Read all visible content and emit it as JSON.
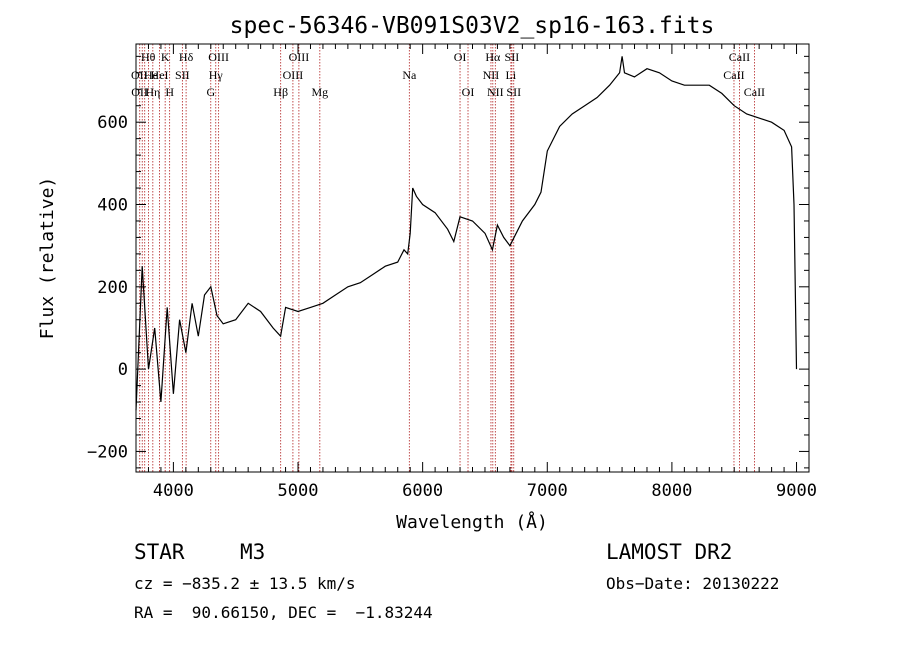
{
  "chart_data": {
    "type": "line",
    "title": "spec-56346-VB091S03V2_sp16-163.fits",
    "xlabel": "Wavelength (Å)",
    "ylabel": "Flux (relative)",
    "xlim": [
      3700,
      9100
    ],
    "ylim": [
      -250,
      790
    ],
    "x_ticks": [
      4000,
      5000,
      6000,
      7000,
      8000,
      9000
    ],
    "x_tick_labels": [
      "4000",
      "5000",
      "6000",
      "7000",
      "8000",
      "9000"
    ],
    "y_ticks": [
      -200,
      0,
      200,
      400,
      600
    ],
    "y_tick_labels": [
      "−200",
      "0",
      "200",
      "400",
      "600"
    ],
    "grid": false,
    "series": [
      {
        "values_x": [
          3700,
          3750,
          3800,
          3850,
          3900,
          3950,
          4000,
          4050,
          4100,
          4150,
          4200,
          4250,
          4300,
          4350,
          4400,
          4500,
          4600,
          4700,
          4800,
          4860,
          4900,
          5000,
          5100,
          5200,
          5300,
          5400,
          5500,
          5600,
          5700,
          5800,
          5850,
          5880,
          5900,
          5920,
          5950,
          6000,
          6100,
          6200,
          6250,
          6300,
          6400,
          6500,
          6560,
          6600,
          6650,
          6700,
          6800,
          6900,
          6950,
          7000,
          7100,
          7200,
          7300,
          7400,
          7500,
          7580,
          7600,
          7620,
          7700,
          7800,
          7900,
          8000,
          8100,
          8200,
          8300,
          8400,
          8500,
          8600,
          8700,
          8800,
          8900,
          8960,
          8980,
          9000
        ],
        "values_y": [
          -100,
          250,
          0,
          100,
          -80,
          150,
          -60,
          120,
          40,
          160,
          80,
          180,
          200,
          130,
          110,
          120,
          160,
          140,
          100,
          80,
          150,
          140,
          150,
          160,
          180,
          200,
          210,
          230,
          250,
          260,
          290,
          280,
          330,
          440,
          420,
          400,
          380,
          340,
          310,
          370,
          360,
          330,
          290,
          350,
          320,
          300,
          360,
          400,
          430,
          530,
          590,
          620,
          640,
          660,
          690,
          720,
          760,
          720,
          710,
          730,
          720,
          700,
          690,
          690,
          690,
          670,
          640,
          620,
          610,
          600,
          580,
          540,
          400,
          0
        ]
      }
    ],
    "annotations": {
      "line_x": [
        3730,
        3750,
        3770,
        3800,
        3835,
        3889,
        3934,
        3970,
        4072,
        4102,
        4300,
        4340,
        4363,
        4861,
        4959,
        5007,
        5175,
        5893,
        6300,
        6364,
        6548,
        6563,
        6583,
        6708,
        6716,
        6731,
        8498,
        8542,
        8662
      ],
      "labels": [
        {
          "text": "OII",
          "x": 3727,
          "row": 2
        },
        {
          "text": "OII",
          "x": 3729,
          "row": 3
        },
        {
          "text": "Hθ",
          "x": 3798,
          "row": 1
        },
        {
          "text": "He",
          "x": 3820,
          "row": 2
        },
        {
          "text": "Hη",
          "x": 3835,
          "row": 3
        },
        {
          "text": "K",
          "x": 3934,
          "row": 1
        },
        {
          "text": "HeI",
          "x": 3889,
          "row": 2
        },
        {
          "text": "H",
          "x": 3970,
          "row": 3
        },
        {
          "text": "SII",
          "x": 4072,
          "row": 2
        },
        {
          "text": "Hδ",
          "x": 4102,
          "row": 1
        },
        {
          "text": "OIII",
          "x": 4363,
          "row": 1
        },
        {
          "text": "Hγ",
          "x": 4340,
          "row": 2
        },
        {
          "text": "G",
          "x": 4300,
          "row": 3
        },
        {
          "text": "Hβ",
          "x": 4861,
          "row": 3
        },
        {
          "text": "OIII",
          "x": 5007,
          "row": 1
        },
        {
          "text": "OIII",
          "x": 4959,
          "row": 2
        },
        {
          "text": "Mg",
          "x": 5175,
          "row": 3
        },
        {
          "text": "Na",
          "x": 5893,
          "row": 2
        },
        {
          "text": "OI",
          "x": 6300,
          "row": 1
        },
        {
          "text": "OI",
          "x": 6364,
          "row": 3
        },
        {
          "text": "Hα",
          "x": 6563,
          "row": 1
        },
        {
          "text": "SII",
          "x": 6716,
          "row": 1
        },
        {
          "text": "NII",
          "x": 6548,
          "row": 2
        },
        {
          "text": "Li",
          "x": 6708,
          "row": 2
        },
        {
          "text": "NII",
          "x": 6583,
          "row": 3
        },
        {
          "text": "SII",
          "x": 6731,
          "row": 3
        },
        {
          "text": "CaII",
          "x": 8542,
          "row": 1
        },
        {
          "text": "CaII",
          "x": 8498,
          "row": 2
        },
        {
          "text": "CaII",
          "x": 8662,
          "row": 3
        }
      ]
    }
  },
  "info": {
    "class_label": "STAR",
    "subclass": "M3",
    "survey": "LAMOST DR2",
    "cz": "cz = −835.2 ± 13.5 km/s",
    "obs_date": "Obs−Date: 20130222",
    "coords": "RA =  90.66150, DEC =  −1.83244"
  },
  "colors": {
    "line": "#000000",
    "marker_lines": "#b22222",
    "background": "#ffffff"
  }
}
